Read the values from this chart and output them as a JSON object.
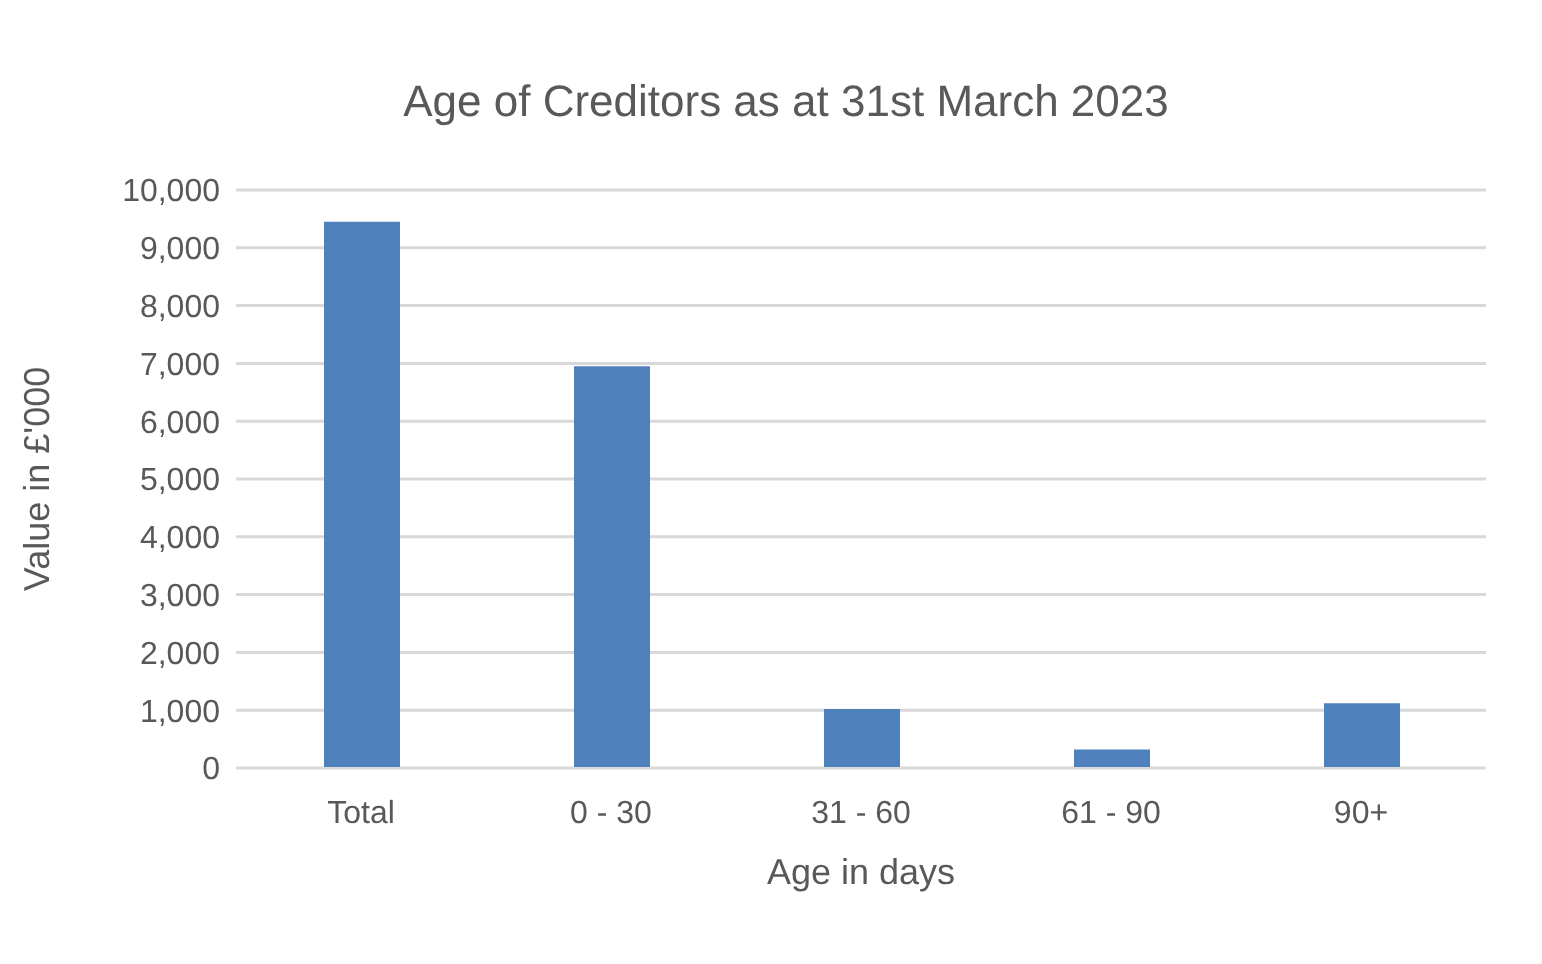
{
  "chart_data": {
    "type": "bar",
    "title": "Age of Creditors as at 31st March 2023",
    "xlabel": "Age in days",
    "ylabel": "Value in £'000",
    "categories": [
      "Total",
      "0 - 30",
      "31 - 60",
      "61 - 90",
      "90+"
    ],
    "values": [
      9450,
      6950,
      1020,
      320,
      1120
    ],
    "color": "#4f81bd",
    "ylim": [
      0,
      10000
    ],
    "yticks": [
      {
        "value": 0,
        "label": "0"
      },
      {
        "value": 1000,
        "label": "1,000"
      },
      {
        "value": 2000,
        "label": "2,000"
      },
      {
        "value": 3000,
        "label": "3,000"
      },
      {
        "value": 4000,
        "label": "4,000"
      },
      {
        "value": 5000,
        "label": "5,000"
      },
      {
        "value": 6000,
        "label": "6,000"
      },
      {
        "value": 7000,
        "label": "7,000"
      },
      {
        "value": 8000,
        "label": "8,000"
      },
      {
        "value": 9000,
        "label": "9,000"
      },
      {
        "value": 10000,
        "label": "10,000"
      }
    ],
    "grid": "y",
    "legend": false
  }
}
